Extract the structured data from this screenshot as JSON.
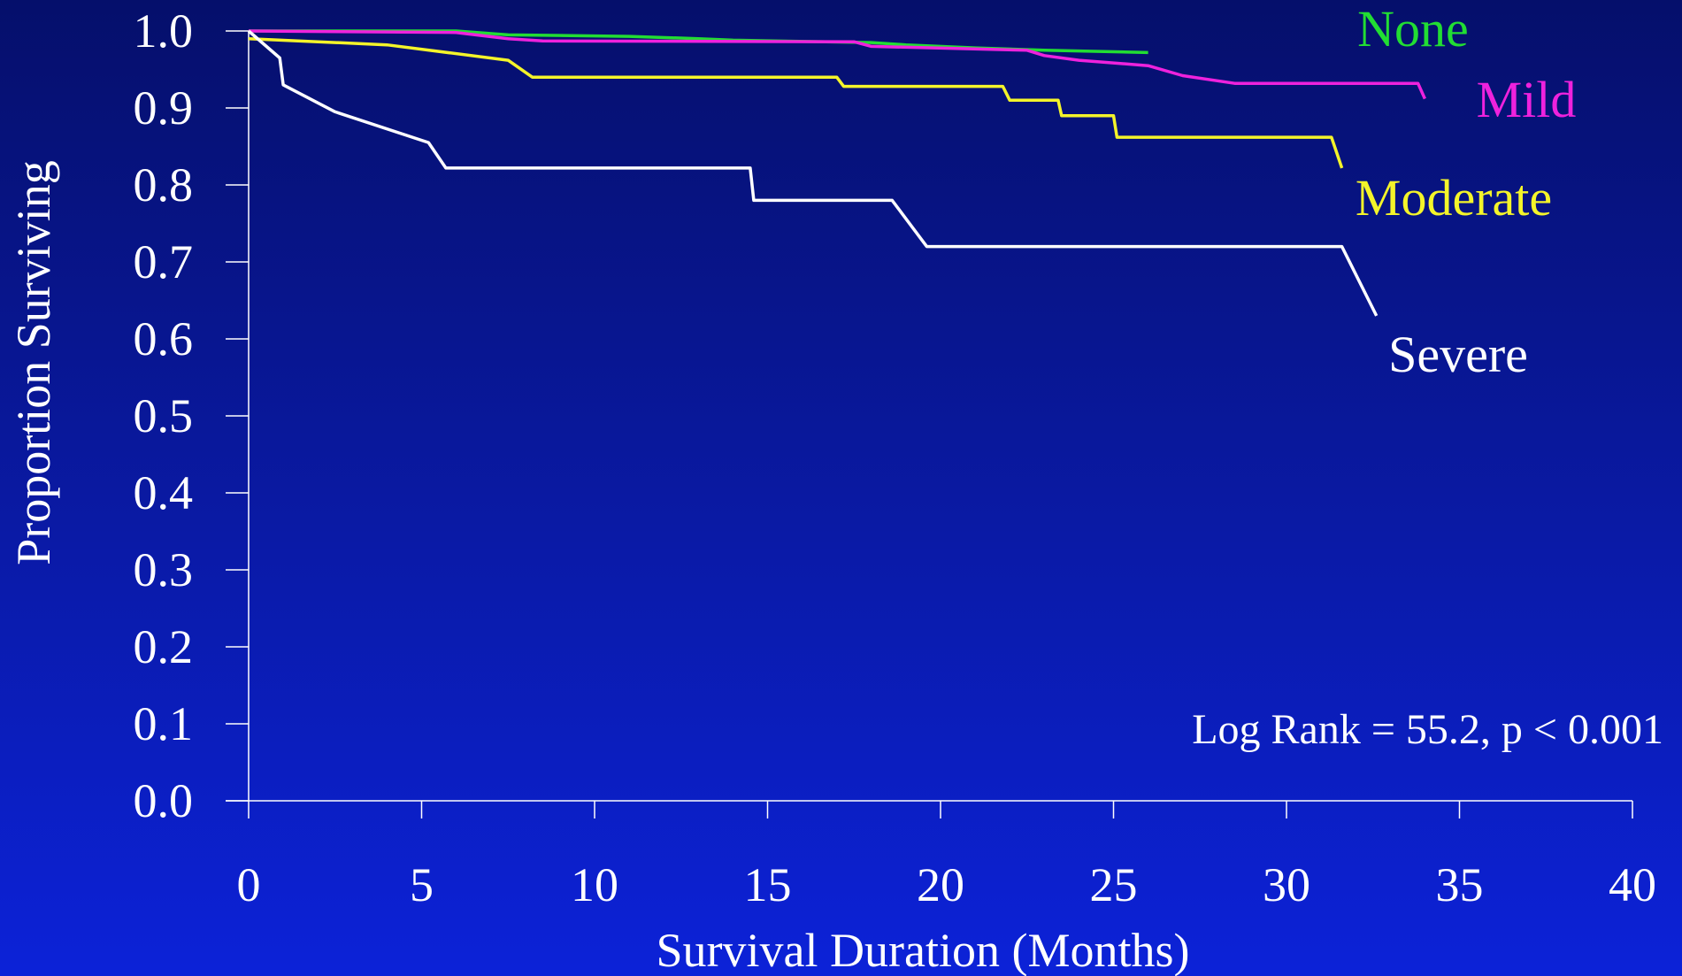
{
  "chart_data": {
    "type": "line",
    "title": "",
    "xlabel": "Survival Duration (Months)",
    "ylabel": "Proportion Surviving",
    "xlim": [
      0,
      40
    ],
    "ylim": [
      0,
      1.0
    ],
    "x_ticks": [
      "0",
      "5",
      "10",
      "15",
      "20",
      "25",
      "30",
      "35",
      "40"
    ],
    "y_ticks": [
      "0.0",
      "0.1",
      "0.2",
      "0.3",
      "0.4",
      "0.5",
      "0.6",
      "0.7",
      "0.8",
      "0.9",
      "1.0"
    ],
    "grid": false,
    "annotation": "Log Rank = 55.2, p < 0.001",
    "series": [
      {
        "name": "None",
        "color": "#22dd33",
        "points": [
          [
            0,
            1.0
          ],
          [
            6,
            1.0
          ],
          [
            7.5,
            0.995
          ],
          [
            11,
            0.993
          ],
          [
            13,
            0.99
          ],
          [
            14,
            0.988
          ],
          [
            18,
            0.985
          ],
          [
            19,
            0.982
          ],
          [
            21,
            0.978
          ],
          [
            23,
            0.975
          ],
          [
            26,
            0.972
          ]
        ]
      },
      {
        "name": "Mild",
        "color": "#ee22dd",
        "points": [
          [
            0,
            1.0
          ],
          [
            6,
            0.998
          ],
          [
            7.5,
            0.99
          ],
          [
            8.5,
            0.987
          ],
          [
            17.5,
            0.986
          ],
          [
            18,
            0.98
          ],
          [
            22.5,
            0.975
          ],
          [
            23,
            0.968
          ],
          [
            24,
            0.962
          ],
          [
            26,
            0.955
          ],
          [
            27,
            0.942
          ],
          [
            28.5,
            0.932
          ],
          [
            33.8,
            0.932
          ],
          [
            34,
            0.912
          ]
        ]
      },
      {
        "name": "Moderate",
        "color": "#f4f42a",
        "points": [
          [
            0,
            0.99
          ],
          [
            4,
            0.982
          ],
          [
            7.5,
            0.962
          ],
          [
            8.2,
            0.94
          ],
          [
            17,
            0.94
          ],
          [
            17.2,
            0.928
          ],
          [
            21.8,
            0.928
          ],
          [
            22,
            0.91
          ],
          [
            23.4,
            0.91
          ],
          [
            23.5,
            0.89
          ],
          [
            25,
            0.89
          ],
          [
            25.1,
            0.862
          ],
          [
            31.3,
            0.862
          ],
          [
            31.6,
            0.822
          ]
        ]
      },
      {
        "name": "Severe",
        "color": "#ffffff",
        "points": [
          [
            0,
            1.0
          ],
          [
            0.9,
            0.965
          ],
          [
            1.0,
            0.93
          ],
          [
            2.5,
            0.895
          ],
          [
            5.2,
            0.855
          ],
          [
            5.7,
            0.822
          ],
          [
            14.5,
            0.822
          ],
          [
            14.6,
            0.78
          ],
          [
            18.6,
            0.78
          ],
          [
            19.6,
            0.72
          ],
          [
            31.6,
            0.72
          ],
          [
            32.6,
            0.63
          ]
        ]
      }
    ]
  }
}
